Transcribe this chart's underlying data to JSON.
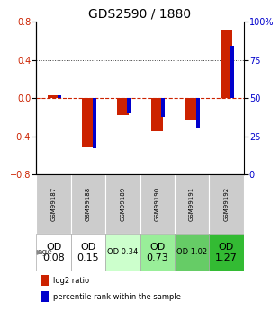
{
  "title": "GDS2590 / 1880",
  "samples": [
    "GSM99187",
    "GSM99188",
    "GSM99189",
    "GSM99190",
    "GSM99191",
    "GSM99192"
  ],
  "log2_ratio": [
    0.03,
    -0.52,
    -0.18,
    -0.35,
    -0.22,
    0.72
  ],
  "percentile_rank": [
    0.52,
    0.17,
    0.4,
    0.38,
    0.3,
    0.84
  ],
  "ylim_left": [
    -0.8,
    0.8
  ],
  "ylim_right": [
    0,
    100
  ],
  "yticks_left": [
    -0.8,
    -0.4,
    0.0,
    0.4,
    0.8
  ],
  "yticks_right": [
    0,
    25,
    50,
    75,
    100
  ],
  "bar_color_red": "#cc2200",
  "bar_color_blue": "#0000cc",
  "hline_color": "#cc2200",
  "dotted_color": "#444444",
  "age_row": {
    "values": [
      "OD\n0.08",
      "OD\n0.15",
      "OD 0.34",
      "OD\n0.73",
      "OD 1.02",
      "OD\n1.27"
    ],
    "bg_colors": [
      "#ffffff",
      "#ffffff",
      "#ccffcc",
      "#99ee99",
      "#66cc66",
      "#33bb33"
    ],
    "fontsizes": [
      8,
      8,
      6,
      8,
      6,
      8
    ]
  },
  "legend_red": "log2 ratio",
  "legend_blue": "percentile rank within the sample",
  "red_bar_width": 0.35,
  "blue_bar_width": 0.1,
  "sample_bg_color": "#cccccc",
  "title_fontsize": 10,
  "tick_fontsize": 7,
  "axis_label_color_left": "#cc2200",
  "axis_label_color_right": "#0000cc",
  "fig_width": 3.11,
  "fig_height": 3.45,
  "fig_dpi": 100
}
